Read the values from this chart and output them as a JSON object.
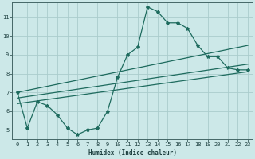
{
  "xlabel": "Humidex (Indice chaleur)",
  "background_color": "#cce8e8",
  "grid_color": "#aacccc",
  "line_color": "#1e6b5e",
  "xlim": [
    -0.5,
    23.5
  ],
  "ylim": [
    4.5,
    11.8
  ],
  "xticks": [
    0,
    1,
    2,
    3,
    4,
    5,
    6,
    7,
    8,
    9,
    10,
    11,
    12,
    13,
    14,
    15,
    16,
    17,
    18,
    19,
    20,
    21,
    22,
    23
  ],
  "yticks": [
    5,
    6,
    7,
    8,
    9,
    10,
    11
  ],
  "line1_x": [
    0,
    1,
    2,
    3,
    4,
    5,
    6,
    7,
    8,
    9,
    10,
    11,
    12,
    13,
    14,
    15,
    16,
    17,
    18,
    19,
    20,
    21,
    22,
    23
  ],
  "line1_y": [
    7.0,
    5.1,
    6.5,
    6.3,
    5.8,
    5.1,
    4.75,
    5.0,
    5.1,
    6.0,
    7.8,
    9.0,
    9.4,
    11.55,
    11.3,
    10.7,
    10.7,
    10.4,
    9.5,
    8.9,
    8.9,
    8.3,
    8.2,
    8.2
  ],
  "line2_x": [
    0,
    23
  ],
  "line2_y": [
    7.0,
    9.5
  ],
  "line3_x": [
    0,
    23
  ],
  "line3_y": [
    6.7,
    8.5
  ],
  "line4_x": [
    0,
    23
  ],
  "line4_y": [
    6.4,
    8.1
  ]
}
